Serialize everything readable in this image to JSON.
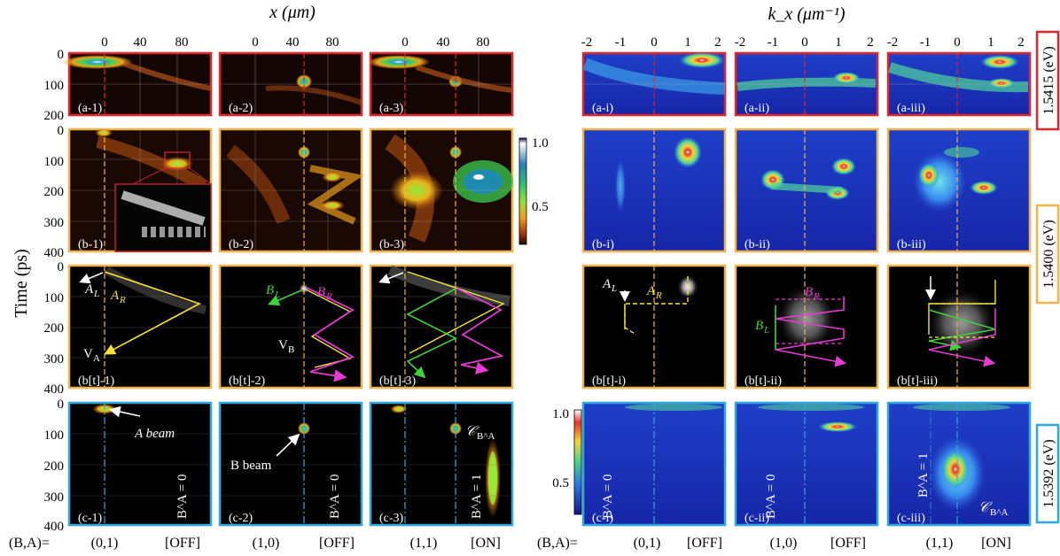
{
  "figure": {
    "x_axis_title": "x (μm)",
    "k_axis_title": "k_x (μm⁻¹)",
    "y_axis_title": "Time (ps)",
    "x_ticks": [
      "0",
      "40",
      "80"
    ],
    "k_ticks": [
      "-2",
      "-1",
      "0",
      "1",
      "2"
    ],
    "y_ticks_a": [
      "0",
      "100",
      "200"
    ],
    "y_ticks_b": [
      "0",
      "100",
      "200",
      "300",
      "400"
    ],
    "colorbar1_ticks": [
      "1.0",
      "0.5"
    ],
    "colorbar2_ticks": [
      "1.0",
      "0.5"
    ],
    "energy_labels": [
      {
        "text": "1.5415 (eV)",
        "color": "#e3262e"
      },
      {
        "text": "1.5400 (eV)",
        "color": "#f2b34b"
      },
      {
        "text": "1.5392 (eV)",
        "color": "#2ea8e0"
      }
    ],
    "bottom_labels": {
      "prefix": "(B,A)=",
      "states": [
        "(0,1)",
        "(1,0)",
        "(1,1)"
      ],
      "status": [
        "[OFF]",
        "[OFF]",
        "[ON]"
      ]
    },
    "rows": {
      "a_x": [
        "(a-1)",
        "(a-2)",
        "(a-3)"
      ],
      "a_k": [
        "(a-i)",
        "(a-ii)",
        "(a-iii)"
      ],
      "b_x": [
        "(b-1)",
        "(b-2)",
        "(b-3)"
      ],
      "b_k": [
        "(b-i)",
        "(b-ii)",
        "(b-iii)"
      ],
      "bt_x": [
        "(b[t]-1)",
        "(b[t]-2)",
        "(b[t]-3)"
      ],
      "bt_k": [
        "(b[t]-i)",
        "(b[t]-ii)",
        "(b[t]-iii)"
      ],
      "c_x": [
        "(c-1)",
        "(c-2)",
        "(c-3)"
      ],
      "c_k": [
        "(c-i)",
        "(c-ii)",
        "(c-iii)"
      ]
    },
    "annotations": {
      "AL": "A",
      "AL_sub": "L",
      "AR": "A",
      "AR_sub": "R",
      "VA": "V",
      "VA_sub": "A",
      "BL": "B",
      "BL_sub": "L",
      "BR": "B",
      "BR_sub": "R",
      "VB": "V",
      "VB_sub": "B",
      "a_beam": "A beam",
      "b_beam": "B beam",
      "logic0": "B^A = 0",
      "logic1": "B^A = 1",
      "cba": "𝒞",
      "cba_sub": "B^A"
    },
    "colors": {
      "red": "#e3262e",
      "orange": "#f2b34b",
      "blue": "#2ea8e0",
      "yellow": "#f5e23a",
      "green": "#3fd23a",
      "magenta": "#e43bd0"
    }
  }
}
